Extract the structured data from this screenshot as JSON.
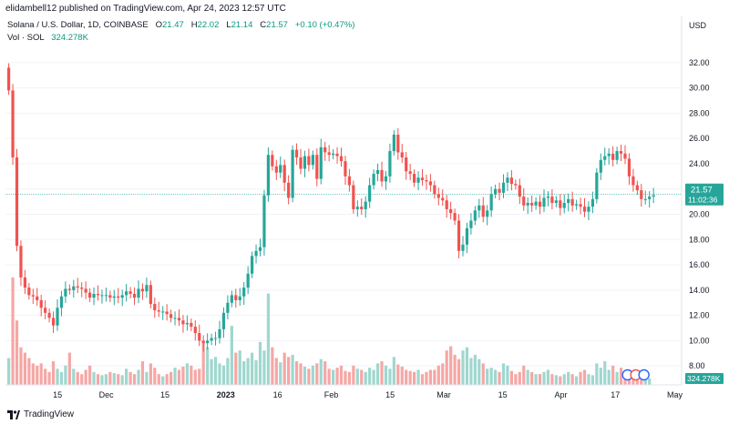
{
  "header": {
    "published_by": "elidambell12 published on TradingView.com, Apr 24, 2023 12:57 UTC"
  },
  "legend": {
    "symbol": "Solana / U.S. Dollar, 1D, COINBASE",
    "o_label": "O",
    "o_value": "21.47",
    "h_label": "H",
    "h_value": "22.02",
    "l_label": "L",
    "l_value": "21.14",
    "c_label": "C",
    "c_value": "21.57",
    "change": "+0.10 (+0.47%)",
    "vol_label": "Vol · SOL",
    "vol_value": "324.278K"
  },
  "price_axis": {
    "currency": "USD",
    "ticks": [
      "32.00",
      "30.00",
      "28.00",
      "26.00",
      "24.00",
      "22.00",
      "20.00",
      "18.00",
      "16.00",
      "14.00",
      "12.00",
      "10.00",
      "8.00"
    ]
  },
  "last_price": {
    "value": "21.57",
    "countdown": "11:02:36"
  },
  "volume_badge": "324.278K",
  "time_axis": [
    "15",
    "Dec",
    "15",
    "2023",
    "16",
    "Feb",
    "15",
    "Mar",
    "15",
    "Apr",
    "17",
    "May"
  ],
  "footer": {
    "brand": "TradingView"
  },
  "colors": {
    "up": "#26a69a",
    "down": "#ef5350",
    "up_vol": "#9fd7cf",
    "down_vol": "#f5a7a5",
    "grid": "#f0f3fa",
    "last_line": "#26a69a"
  },
  "chart_data": {
    "type": "candlestick",
    "title": "Solana / U.S. Dollar, 1D, COINBASE",
    "ylabel": "USD",
    "ylim": [
      6.5,
      33.5
    ],
    "x_tick_labels": [
      "15",
      "Dec",
      "15",
      "2023",
      "16",
      "Feb",
      "15",
      "Mar",
      "15",
      "Apr",
      "17",
      "May"
    ],
    "close": [
      29.8,
      24.5,
      17.5,
      15.0,
      14.2,
      13.6,
      13.5,
      13.2,
      12.6,
      12.2,
      11.8,
      11.2,
      12.6,
      13.5,
      14.1,
      14.0,
      14.3,
      14.2,
      14.1,
      13.8,
      13.4,
      13.7,
      13.6,
      13.6,
      13.6,
      13.4,
      13.5,
      13.4,
      13.6,
      13.9,
      13.7,
      13.4,
      14.1,
      13.9,
      14.4,
      12.9,
      12.4,
      12.3,
      12.3,
      12.1,
      11.8,
      11.8,
      11.6,
      11.3,
      11.4,
      11.1,
      10.6,
      10.0,
      9.8,
      10.0,
      10.2,
      10.2,
      10.9,
      12.2,
      13.0,
      13.6,
      13.2,
      13.5,
      14.2,
      15.3,
      16.7,
      17.1,
      17.4,
      21.5,
      24.7,
      23.8,
      23.3,
      23.9,
      22.5,
      21.3,
      25.1,
      24.5,
      23.6,
      24.6,
      23.9,
      24.7,
      22.8,
      25.3,
      24.9,
      24.7,
      24.8,
      24.6,
      24.2,
      23.0,
      22.3,
      20.4,
      20.6,
      20.4,
      21.0,
      22.3,
      23.2,
      23.5,
      22.6,
      23.0,
      25.0,
      26.3,
      24.9,
      24.5,
      23.4,
      23.2,
      22.5,
      22.9,
      22.7,
      22.6,
      22.3,
      21.6,
      21.3,
      21.1,
      20.4,
      20.1,
      19.5,
      17.1,
      17.6,
      18.9,
      19.5,
      20.3,
      20.7,
      19.8,
      20.3,
      21.6,
      22.0,
      21.7,
      22.5,
      22.9,
      22.4,
      22.3,
      21.4,
      20.7,
      20.9,
      20.7,
      21.0,
      20.6,
      21.3,
      21.4,
      20.9,
      21.1,
      20.5,
      20.9,
      21.2,
      20.7,
      20.8,
      20.6,
      20.2,
      20.6,
      21.2,
      23.3,
      24.3,
      24.6,
      24.8,
      24.3,
      25.0,
      24.8,
      24.4,
      23.0,
      22.3,
      21.9,
      21.2,
      21.2,
      21.4,
      21.5
    ],
    "volume_relative": [
      0.25,
      1.0,
      0.6,
      0.35,
      0.3,
      0.25,
      0.2,
      0.18,
      0.2,
      0.15,
      0.12,
      0.22,
      0.15,
      0.12,
      0.18,
      0.3,
      0.15,
      0.12,
      0.1,
      0.14,
      0.18,
      0.12,
      0.1,
      0.09,
      0.1,
      0.12,
      0.11,
      0.1,
      0.09,
      0.15,
      0.12,
      0.1,
      0.14,
      0.22,
      0.12,
      0.2,
      0.16,
      0.1,
      0.08,
      0.1,
      0.12,
      0.16,
      0.14,
      0.17,
      0.2,
      0.18,
      0.14,
      0.15,
      0.4,
      0.35,
      0.24,
      0.26,
      0.2,
      0.18,
      0.25,
      0.55,
      0.3,
      0.32,
      0.22,
      0.25,
      0.3,
      0.23,
      0.4,
      0.32,
      0.85,
      0.35,
      0.25,
      0.21,
      0.3,
      0.26,
      0.28,
      0.22,
      0.2,
      0.17,
      0.15,
      0.18,
      0.2,
      0.24,
      0.22,
      0.15,
      0.14,
      0.16,
      0.18,
      0.13,
      0.12,
      0.18,
      0.15,
      0.14,
      0.12,
      0.16,
      0.14,
      0.2,
      0.22,
      0.18,
      0.15,
      0.26,
      0.19,
      0.17,
      0.14,
      0.13,
      0.12,
      0.14,
      0.1,
      0.12,
      0.14,
      0.14,
      0.18,
      0.2,
      0.32,
      0.36,
      0.28,
      0.24,
      0.32,
      0.35,
      0.25,
      0.28,
      0.24,
      0.2,
      0.15,
      0.16,
      0.14,
      0.12,
      0.2,
      0.18,
      0.13,
      0.1,
      0.12,
      0.18,
      0.14,
      0.12,
      0.1,
      0.1,
      0.12,
      0.14,
      0.1,
      0.09,
      0.08,
      0.1,
      0.12,
      0.1,
      0.08,
      0.12,
      0.14,
      0.1,
      0.09,
      0.2,
      0.16,
      0.22,
      0.14,
      0.18,
      0.12,
      0.16,
      0.13,
      0.14,
      0.12,
      0.11,
      0.1,
      0.08,
      0.06
    ]
  }
}
